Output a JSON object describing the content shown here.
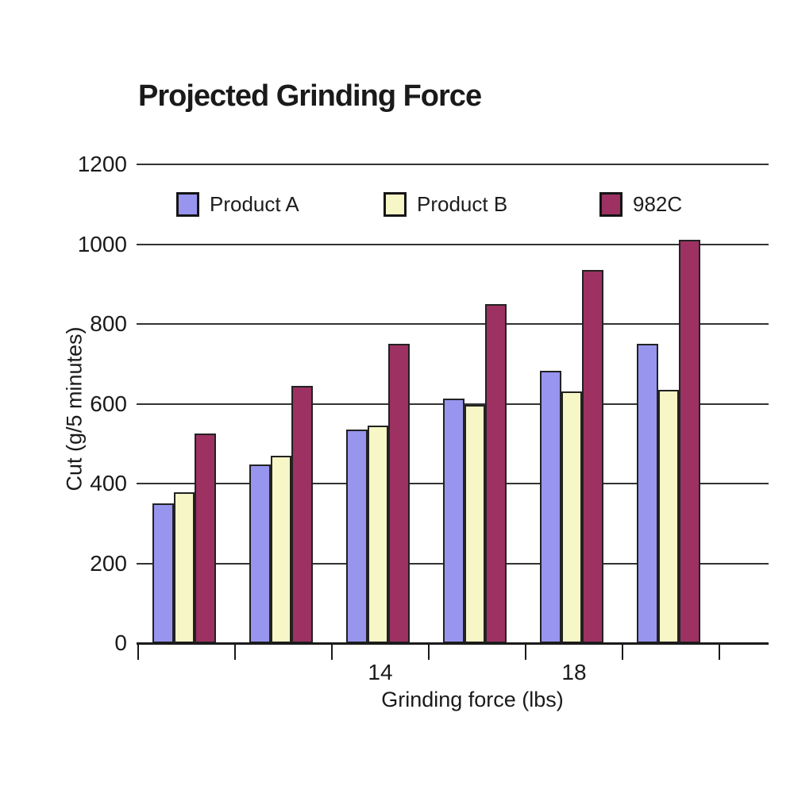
{
  "chart_data": {
    "type": "bar",
    "title": "Projected Grinding Force",
    "xlabel": "Grinding force (lbs)",
    "ylabel": "Cut (g/5 minutes)",
    "ylim": [
      0,
      1200
    ],
    "yticks": [
      0,
      200,
      400,
      600,
      800,
      1000,
      1200
    ],
    "categories": [
      "",
      "",
      "14",
      "",
      "18",
      ""
    ],
    "grid": true,
    "legend_position": "top-inside",
    "series": [
      {
        "name": "Product A",
        "color": "#9795ee",
        "values": [
          350,
          447,
          536,
          613,
          683,
          750
        ]
      },
      {
        "name": "Product B",
        "color": "#f6f6c6",
        "values": [
          379,
          470,
          546,
          598,
          631,
          635
        ]
      },
      {
        "name": "982C",
        "color": "#9c3162",
        "values": [
          525,
          645,
          751,
          850,
          935,
          1010
        ]
      }
    ],
    "colors": {
      "background": "#ffffff",
      "text": "#1a1a1a",
      "grid_line": "#333333",
      "axis_line": "#1a1a1a",
      "bar_border": "#222222"
    }
  }
}
